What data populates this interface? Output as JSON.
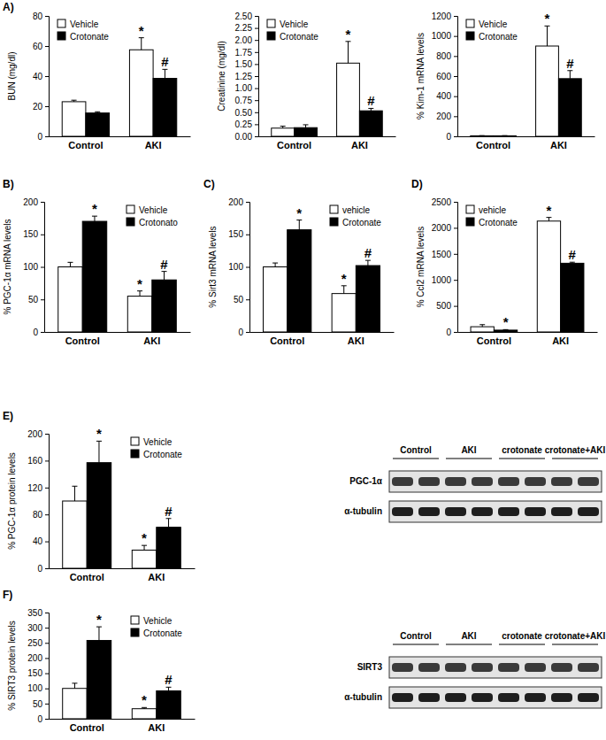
{
  "chart_data": [
    {
      "type": "bar",
      "annotations": [
        "A)"
      ],
      "y_label": "BUN (mg/dl)",
      "categories": [
        "Control",
        "AKI"
      ],
      "series": [
        {
          "name": "Vehicle",
          "color": "#ffffff",
          "values": [
            23,
            57.5
          ],
          "errors": [
            1,
            8
          ],
          "significance": [
            null,
            "*"
          ]
        },
        {
          "name": "Crotonate",
          "color": "#000000",
          "values": [
            15.5,
            38.5
          ],
          "errors": [
            0.8,
            6
          ],
          "significance": [
            null,
            "#"
          ]
        }
      ],
      "ylim": [
        0,
        80
      ],
      "yticks": [
        0,
        20,
        40,
        60,
        80
      ],
      "grid": false,
      "legend": "upper left"
    },
    {
      "type": "bar",
      "y_label": "Creatinine (mg/dl)",
      "categories": [
        "Control",
        "AKI"
      ],
      "series": [
        {
          "name": "Vehicle",
          "color": "#ffffff",
          "values": [
            0.17,
            1.52
          ],
          "errors": [
            0.04,
            0.45
          ],
          "significance": [
            null,
            "*"
          ]
        },
        {
          "name": "Crotonate",
          "color": "#000000",
          "values": [
            0.18,
            0.53
          ],
          "errors": [
            0.06,
            0.05
          ],
          "significance": [
            null,
            "#"
          ]
        }
      ],
      "ylim": [
        0,
        2.5
      ],
      "yticks": [
        {
          "value": 0,
          "label": "0.00"
        },
        {
          "value": 0.25,
          "label": "0.25"
        },
        {
          "value": 0.5,
          "label": "0.50"
        },
        {
          "value": 0.75,
          "label": "0.75"
        },
        {
          "value": 1,
          "label": "1.00"
        },
        {
          "value": 1.25,
          "label": "1.25"
        },
        {
          "value": 1.5,
          "label": "1.50"
        },
        {
          "value": 1.75,
          "label": "1.75"
        },
        {
          "value": 2,
          "label": "2.00"
        },
        {
          "value": 2.25,
          "label": "2.25"
        },
        {
          "value": 2.5,
          "label": "2.50"
        }
      ],
      "grid": false,
      "legend": "upper left"
    },
    {
      "type": "bar",
      "y_label": "% Kim-1 mRNA levels",
      "categories": [
        "Control",
        "AKI"
      ],
      "series": [
        {
          "name": "Vehicle",
          "color": "#ffffff",
          "values": [
            5,
            900
          ],
          "errors": [
            2,
            200
          ],
          "significance": [
            null,
            "*"
          ]
        },
        {
          "name": "Crotonate",
          "color": "#000000",
          "values": [
            5,
            575
          ],
          "errors": [
            2,
            80
          ],
          "significance": [
            null,
            "#"
          ]
        }
      ],
      "ylim": [
        0,
        1200
      ],
      "yticks": [
        0,
        200,
        400,
        600,
        800,
        1000,
        1200
      ],
      "grid": false,
      "legend": "upper left"
    },
    {
      "type": "bar",
      "annotations": [
        "B)"
      ],
      "y_label": "% PGC-1α mRNA levels",
      "categories": [
        "Control",
        "AKI"
      ],
      "series": [
        {
          "name": "Vehicle",
          "color": "#ffffff",
          "values": [
            100,
            55
          ],
          "errors": [
            7,
            8
          ],
          "significance": [
            null,
            "*"
          ]
        },
        {
          "name": "Crotonato",
          "color": "#000000",
          "values": [
            170,
            80
          ],
          "errors": [
            8,
            13
          ],
          "significance": [
            "*",
            "#"
          ]
        }
      ],
      "ylim": [
        0,
        200
      ],
      "yticks": [
        0,
        50,
        100,
        150,
        200
      ],
      "grid": false,
      "legend": "upper right"
    },
    {
      "type": "bar",
      "annotations": [
        "C)"
      ],
      "y_label": "% Sirt3 mRNA levels",
      "categories": [
        "Control",
        "AKI"
      ],
      "series": [
        {
          "name": "vehicle",
          "color": "#ffffff",
          "values": [
            100,
            59
          ],
          "errors": [
            6,
            12
          ],
          "significance": [
            null,
            "*"
          ]
        },
        {
          "name": "Crotonate",
          "color": "#000000",
          "values": [
            157,
            102
          ],
          "errors": [
            15,
            8
          ],
          "significance": [
            "*",
            "#"
          ]
        }
      ],
      "ylim": [
        0,
        200
      ],
      "yticks": [
        0,
        50,
        100,
        150,
        200
      ],
      "grid": false,
      "legend": "upper right"
    },
    {
      "type": "bar",
      "annotations": [
        "D)"
      ],
      "y_label": "% Ccl2 mRNA levels",
      "categories": [
        "Control",
        "AKI"
      ],
      "series": [
        {
          "name": "vehicle",
          "color": "#ffffff",
          "values": [
            100,
            2130
          ],
          "errors": [
            40,
            70
          ],
          "significance": [
            null,
            "*"
          ]
        },
        {
          "name": "Crotonate",
          "color": "#000000",
          "values": [
            35,
            1320
          ],
          "errors": [
            10,
            20
          ],
          "significance": [
            "*",
            "#"
          ]
        }
      ],
      "ylim": [
        0,
        2500
      ],
      "yticks": [
        0,
        500,
        1000,
        1500,
        2000,
        2500
      ],
      "grid": false,
      "legend": "upper left"
    },
    {
      "type": "bar",
      "annotations": [
        "E)"
      ],
      "y_label": "% PGC-1α protein levels",
      "categories": [
        "Control",
        "AKI"
      ],
      "series": [
        {
          "name": "Vehicle",
          "color": "#ffffff",
          "values": [
            100,
            27
          ],
          "errors": [
            22,
            7
          ],
          "significance": [
            null,
            "*"
          ]
        },
        {
          "name": "Crotonate",
          "color": "#000000",
          "values": [
            157,
            61
          ],
          "errors": [
            32,
            13
          ],
          "significance": [
            "*",
            "#"
          ]
        }
      ],
      "ylim": [
        0,
        200
      ],
      "yticks": [
        0,
        40,
        80,
        120,
        160,
        200
      ],
      "grid": false,
      "legend": "upper right"
    },
    {
      "type": "bar",
      "annotations": [
        "F)"
      ],
      "y_label": "% SIRT3 protein levels",
      "categories": [
        "Control",
        "AKI"
      ],
      "series": [
        {
          "name": "Vehicle",
          "color": "#ffffff",
          "values": [
            100,
            33
          ],
          "errors": [
            17,
            4
          ],
          "significance": [
            null,
            "*"
          ]
        },
        {
          "name": "Crotonate",
          "color": "#000000",
          "values": [
            258,
            92
          ],
          "errors": [
            45,
            12
          ],
          "significance": [
            "*",
            "#"
          ]
        }
      ],
      "ylim": [
        0,
        350
      ],
      "yticks": [
        0,
        50,
        100,
        150,
        200,
        250,
        300,
        350
      ],
      "grid": false,
      "legend": "upper right"
    }
  ],
  "blots": [
    {
      "columns": [
        "Control",
        "AKI",
        "crotonate",
        "crotonate+AKI"
      ],
      "rows": [
        "PGC-1α",
        "α-tubulin"
      ]
    },
    {
      "columns": [
        "Control",
        "AKI",
        "crotonate",
        "crotonate+AKI"
      ],
      "rows": [
        "SIRT3",
        "α-tubulin"
      ]
    }
  ]
}
